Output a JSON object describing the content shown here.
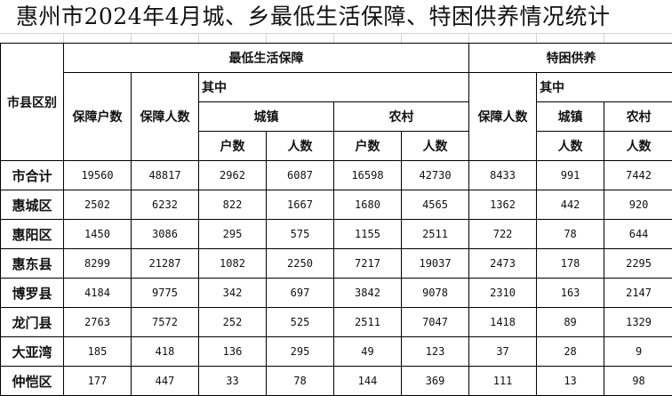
{
  "title": "惠州市2024年4月城、乡最低生活保障、特困供养情况统计",
  "header": {
    "region": "市县区别",
    "dibao": "最低生活保障",
    "dibao_households": "保障户数",
    "dibao_persons": "保障人数",
    "dibao_of_which": "其中",
    "dibao_urban": "城镇",
    "dibao_rural": "农村",
    "households": "户数",
    "persons": "人数",
    "tekun": "特困供养",
    "tekun_persons": "保障人数",
    "tekun_of_which": "其中",
    "tekun_urban": "城镇",
    "tekun_rural": "农村"
  },
  "rows": [
    {
      "name": "市合计",
      "values": [
        19560,
        48817,
        2962,
        6087,
        16598,
        42730,
        8433,
        991,
        7442
      ]
    },
    {
      "name": "惠城区",
      "values": [
        2502,
        6232,
        822,
        1667,
        1680,
        4565,
        1362,
        442,
        920
      ]
    },
    {
      "name": "惠阳区",
      "values": [
        1450,
        3086,
        295,
        575,
        1155,
        2511,
        722,
        78,
        644
      ]
    },
    {
      "name": "惠东县",
      "values": [
        8299,
        21287,
        1082,
        2250,
        7217,
        19037,
        2473,
        178,
        2295
      ]
    },
    {
      "name": "博罗县",
      "values": [
        4184,
        9775,
        342,
        697,
        3842,
        9078,
        2310,
        163,
        2147
      ]
    },
    {
      "name": "龙门县",
      "values": [
        2763,
        7572,
        252,
        525,
        2511,
        7047,
        1418,
        89,
        1329
      ]
    },
    {
      "name": "大亚湾",
      "values": [
        185,
        418,
        136,
        295,
        49,
        123,
        37,
        28,
        9
      ]
    },
    {
      "name": "仲恺区",
      "values": [
        177,
        447,
        33,
        78,
        144,
        369,
        111,
        13,
        98
      ]
    }
  ]
}
